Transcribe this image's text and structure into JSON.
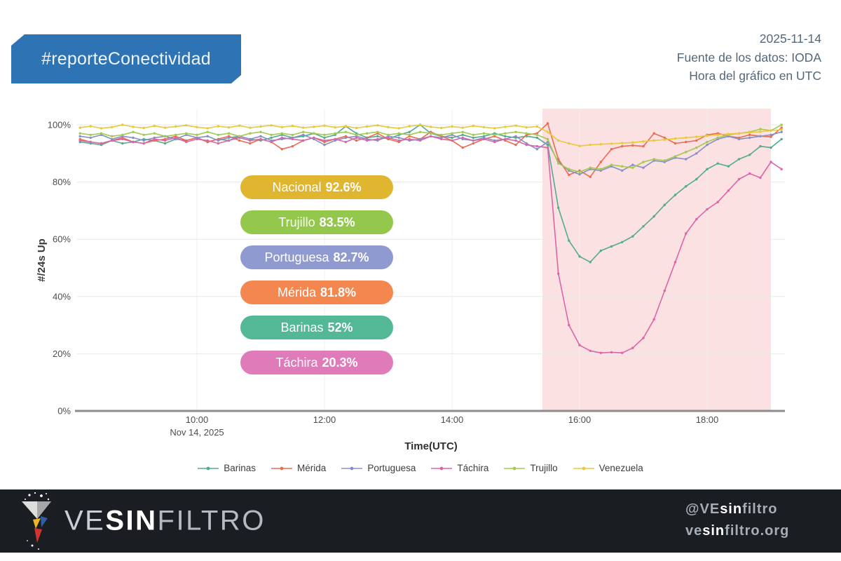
{
  "banner": {
    "title": "#reporteConectividad",
    "bg_color": "#2e73b3"
  },
  "header": {
    "date": "2025-11-14",
    "source": "Fuente de los datos: IODA",
    "timezone_note": "Hora del gráfico en UTC"
  },
  "badges": [
    {
      "label": "Nacional",
      "value": "92.6%",
      "color": "#e0b52f"
    },
    {
      "label": "Trujillo",
      "value": "83.5%",
      "color": "#93c84d"
    },
    {
      "label": "Portuguesa",
      "value": "82.7%",
      "color": "#8e9ad0"
    },
    {
      "label": "Mérida",
      "value": "81.8%",
      "color": "#f4874f"
    },
    {
      "label": "Barinas",
      "value": "52%",
      "color": "#52b896"
    },
    {
      "label": "Táchira",
      "value": "20.3%",
      "color": "#e07bba"
    }
  ],
  "chart_data": {
    "type": "line",
    "xlabel": "Time(UTC)",
    "ylabel": "#/24s Up",
    "x_axis_date_label": "Nov 14, 2025",
    "ylim": [
      0,
      100
    ],
    "grid": true,
    "legend_position": "bottom",
    "x_start_min": 490,
    "x_step_min": 10,
    "x_ticks": [
      {
        "label": "10:00",
        "min": 600
      },
      {
        "label": "12:00",
        "min": 720
      },
      {
        "label": "14:00",
        "min": 840
      },
      {
        "label": "16:00",
        "min": 960
      },
      {
        "label": "18:00",
        "min": 1080
      }
    ],
    "y_ticks": [
      {
        "label": "0%",
        "pct": 0
      },
      {
        "label": "20%",
        "pct": 20
      },
      {
        "label": "40%",
        "pct": 40
      },
      {
        "label": "60%",
        "pct": 60
      },
      {
        "label": "80%",
        "pct": 80
      },
      {
        "label": "100%",
        "pct": 100
      }
    ],
    "highlight_region": {
      "start_min": 925,
      "end_min": 1140,
      "color": "#fbe1e1"
    },
    "series": [
      {
        "name": "Barinas",
        "color": "#52ab8e",
        "min_pct": 52,
        "values": [
          94,
          93.5,
          93,
          94.5,
          93.5,
          94,
          95,
          94.5,
          93.5,
          95,
          94.5,
          95.5,
          94,
          95,
          94.5,
          96,
          95,
          94.5,
          95.5,
          96.5,
          95.5,
          96,
          97,
          95.5,
          96.5,
          99.5,
          97,
          95.5,
          96,
          95,
          96.5,
          97.5,
          100,
          97,
          96,
          95.5,
          96.5,
          95.5,
          96,
          97,
          96,
          95.5,
          96,
          95.5,
          93,
          71,
          59.5,
          54,
          52,
          56,
          57.5,
          59,
          61,
          64.5,
          68,
          72,
          75.5,
          78.5,
          81,
          84.5,
          86.5,
          85.5,
          88,
          89.5,
          92.5,
          92,
          95
        ]
      },
      {
        "name": "Mérida",
        "color": "#ee6a50",
        "min_pct": 81.8,
        "values": [
          95,
          94,
          93.5,
          94.5,
          95.5,
          94,
          93.5,
          94.5,
          95,
          96,
          94.5,
          95.5,
          94,
          95,
          96,
          94.5,
          93.5,
          95,
          94,
          91.5,
          92.5,
          94.5,
          95.5,
          94,
          95,
          96,
          94.5,
          95.5,
          97,
          95,
          94,
          96,
          95,
          97.5,
          96,
          94.5,
          92,
          93.5,
          95,
          96,
          94.5,
          93,
          96.5,
          97,
          100.5,
          88,
          82.5,
          84,
          81.8,
          87,
          91.5,
          92.5,
          92.8,
          92.5,
          97,
          95.5,
          93.5,
          94,
          94.5,
          96.5,
          97,
          96,
          95.5,
          96.5,
          96,
          95.8,
          99
        ]
      },
      {
        "name": "Portuguesa",
        "color": "#8590cb",
        "min_pct": 82.7,
        "values": [
          96,
          95.5,
          96.5,
          95,
          96,
          95.5,
          94.5,
          95.5,
          96,
          95,
          96.5,
          95.5,
          96,
          94.5,
          95.5,
          96,
          95,
          96,
          94.5,
          95,
          95.5,
          96.5,
          95,
          93,
          94.5,
          95.5,
          96,
          95,
          94.5,
          96,
          95.5,
          94.5,
          95,
          96,
          95.5,
          96.5,
          95,
          94.5,
          95.5,
          94.5,
          95,
          96,
          93.5,
          91.5,
          94,
          87,
          84,
          82.7,
          84.5,
          84,
          85.5,
          84,
          86,
          85,
          87.5,
          87,
          88.5,
          88,
          90,
          93,
          95,
          96,
          95,
          95.5,
          96,
          96.5,
          97.5
        ]
      },
      {
        "name": "Táchira",
        "color": "#dc64ab",
        "min_pct": 20.3,
        "values": [
          94.5,
          94,
          93.5,
          94.5,
          95,
          94,
          93.5,
          95,
          94.5,
          95.5,
          94,
          95,
          94.5,
          93.5,
          94.5,
          95.5,
          94.5,
          95,
          94,
          95.5,
          95,
          94.5,
          95.5,
          94.5,
          95,
          94,
          95.5,
          94.5,
          95,
          95.5,
          94.5,
          95,
          94.5,
          96,
          95,
          94.5,
          95.5,
          94.5,
          95,
          94,
          95,
          94.5,
          93,
          92.5,
          92,
          48,
          30,
          23,
          21,
          20.3,
          20.5,
          20.3,
          22,
          25.5,
          32,
          42,
          52,
          62,
          67,
          70.5,
          73,
          77,
          81,
          83,
          81.5,
          87,
          84.5
        ]
      },
      {
        "name": "Trujillo",
        "color": "#a2cb4c",
        "min_pct": 83.5,
        "values": [
          97,
          96.5,
          97,
          96,
          96.5,
          97.5,
          96.5,
          97,
          96,
          96.5,
          97,
          96.5,
          97.5,
          96.5,
          97,
          96,
          97,
          97.5,
          96.5,
          97,
          96.5,
          97.5,
          97,
          96.5,
          97,
          97.5,
          96.5,
          97,
          97.5,
          96.5,
          97,
          96.5,
          97.5,
          97,
          96.5,
          97,
          97.5,
          96.5,
          97,
          96.5,
          97,
          97.5,
          97,
          96.5,
          95,
          86.5,
          84.5,
          83.5,
          85,
          84.5,
          86,
          85.5,
          85,
          87,
          88,
          87.5,
          89,
          90.5,
          92,
          94,
          95.5,
          96.5,
          97,
          97.5,
          98.5,
          98,
          100
        ]
      },
      {
        "name": "Venezuela",
        "color": "#e8ca36",
        "min_pct": 92.6,
        "values": [
          99,
          99.5,
          98.8,
          99.2,
          100,
          99.3,
          98.9,
          99.6,
          99,
          99.4,
          99.8,
          99.2,
          98.8,
          99.5,
          99.1,
          99.7,
          99,
          99.4,
          99.8,
          99.2,
          99.6,
          99,
          99.3,
          99.7,
          99.1,
          99.5,
          98.9,
          99.4,
          99.8,
          99.2,
          98.8,
          99.5,
          99.9,
          99.3,
          98.9,
          99.4,
          99,
          99.6,
          99.2,
          98.8,
          99.3,
          99.7,
          99.1,
          99.4,
          97.5,
          94.5,
          93.5,
          92.6,
          93,
          93.2,
          93.4,
          93.6,
          93.8,
          94.2,
          94.5,
          94.8,
          95.2,
          95.5,
          95.8,
          96.2,
          96.5,
          96.8,
          97,
          97.3,
          97.6,
          98,
          98.3
        ]
      }
    ]
  },
  "footer": {
    "wordmark": {
      "part1": "VE",
      "part2": "SIN",
      "part3": "FILTRO"
    },
    "social": {
      "part1": "@VE",
      "part2": "sin",
      "part3": "filtro"
    },
    "website": {
      "part1": "ve",
      "part2": "sin",
      "part3": "filtro.org"
    }
  }
}
